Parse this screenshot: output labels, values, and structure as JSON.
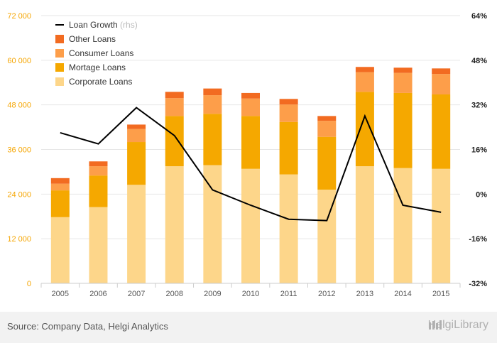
{
  "chart_data": {
    "type": "bar",
    "stacked": true,
    "categories": [
      "2005",
      "2006",
      "2007",
      "2008",
      "2009",
      "2010",
      "2011",
      "2012",
      "2013",
      "2014",
      "2015"
    ],
    "series": [
      {
        "name": "Corporate Loans",
        "color": "#fdd68a",
        "values": [
          17800,
          20500,
          26500,
          31500,
          31800,
          30800,
          29300,
          25200,
          31500,
          31000,
          30800
        ]
      },
      {
        "name": "Mortage Loans",
        "color": "#f5a800",
        "values": [
          7200,
          8500,
          11500,
          13500,
          13800,
          14200,
          14100,
          14200,
          20000,
          20200,
          20000
        ]
      },
      {
        "name": "Consumer Loans",
        "color": "#fd9e4a",
        "values": [
          1800,
          2500,
          3500,
          4800,
          5000,
          4700,
          4700,
          4300,
          5300,
          5400,
          5500
        ]
      },
      {
        "name": "Other Loans",
        "color": "#f26b21",
        "values": [
          1500,
          1300,
          1200,
          1700,
          1800,
          1500,
          1500,
          1300,
          1400,
          1400,
          1500
        ]
      }
    ],
    "line_series": {
      "name": "Loan Growth",
      "note": "(rhs)",
      "color": "#000000",
      "values": [
        22,
        18,
        31,
        21,
        1.5,
        -4,
        -9,
        -9.5,
        28,
        -4,
        -6.5
      ]
    },
    "y_left": {
      "min": 0,
      "max": 72000,
      "ticks": [
        "0",
        "12 000",
        "24 000",
        "36 000",
        "48 000",
        "60 000",
        "72 000"
      ]
    },
    "y_right": {
      "min": -32,
      "max": 64,
      "ticks": [
        "-32%",
        "-16%",
        "0%",
        "16%",
        "32%",
        "48%",
        "64%"
      ]
    },
    "legend_position": "top-left",
    "grid": true
  },
  "footer": {
    "source": "Source: Company Data, Helgi Analytics",
    "brand": "HelgiLibrary"
  }
}
